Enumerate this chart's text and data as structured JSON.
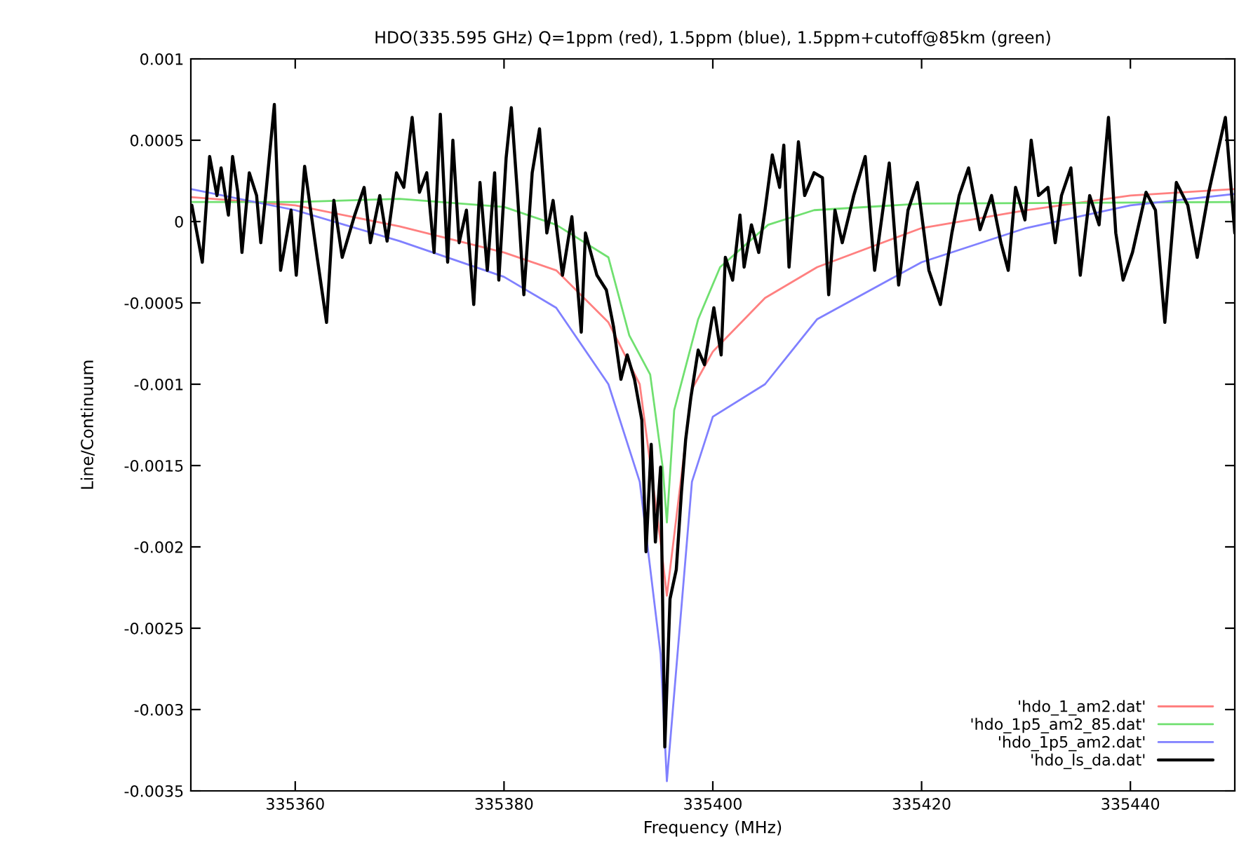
{
  "chart_data": {
    "type": "line",
    "title": "HDO(335.595 GHz) Q=1ppm (red), 1.5ppm (blue), 1.5ppm+cutoff@85km (green)",
    "xlabel": "Frequency (MHz)",
    "ylabel": "Line/Continuum",
    "xlim": [
      335350,
      335450
    ],
    "xticks": [
      335360,
      335380,
      335400,
      335420,
      335440
    ],
    "ylim": [
      -0.0035,
      0.001
    ],
    "yticks": [
      -0.0035,
      -0.003,
      -0.0025,
      -0.002,
      -0.0015,
      -0.001,
      -0.0005,
      0,
      0.0005,
      0.001
    ],
    "grid": false,
    "legend": "bottom right",
    "marker": "none",
    "line_style": "solid",
    "series": [
      {
        "name": "'hdo_1_am2.dat'",
        "color": "#ff8080",
        "x": [
          335350,
          335360,
          335370,
          335380,
          335385,
          335390,
          335393,
          335395,
          335395.6,
          335398,
          335400,
          335405,
          335410,
          335420,
          335430,
          335440,
          335450
        ],
        "values": [
          0.00015,
          0.0001,
          -3e-05,
          -0.00019,
          -0.0003,
          -0.00062,
          -0.001,
          -0.00197,
          -0.0023,
          -0.00103,
          -0.0008,
          -0.00047,
          -0.00028,
          -4e-05,
          7e-05,
          0.00016,
          0.0002
        ]
      },
      {
        "name": "'hdo_1p5_am2_85.dat'",
        "color": "#70e070",
        "x": [
          335350,
          335360,
          335370,
          335380,
          335385,
          335390,
          335392,
          335394,
          335395.2,
          335395.6,
          335396.3,
          335398.6,
          335400.7,
          335405.3,
          335409.7,
          335420,
          335450
        ],
        "values": [
          0.00012,
          0.00012,
          0.00014,
          9e-05,
          -2e-05,
          -0.00022,
          -0.0007,
          -0.00094,
          -0.00151,
          -0.00185,
          -0.00116,
          -0.0006,
          -0.00028,
          -2e-05,
          7e-05,
          0.00011,
          0.00012
        ]
      },
      {
        "name": "'hdo_1p5_am2.dat'",
        "color": "#8080ff",
        "x": [
          335350,
          335360,
          335370,
          335380,
          335385,
          335390,
          335393,
          335395,
          335395.6,
          335398,
          335400,
          335405,
          335410,
          335420,
          335430,
          335440,
          335450
        ],
        "values": [
          0.0002,
          7e-05,
          -0.00012,
          -0.00034,
          -0.00053,
          -0.001,
          -0.0016,
          -0.00266,
          -0.00344,
          -0.0016,
          -0.0012,
          -0.001,
          -0.0006,
          -0.00025,
          -4e-05,
          0.0001,
          0.00017
        ]
      },
      {
        "name": "'hdo_ls_da.dat'",
        "color": "#000000",
        "x": [
          335350.1,
          335351.1,
          335351.8,
          335352.5,
          335352.9,
          335353.6,
          335354.0,
          335354.5,
          335354.9,
          335355.6,
          335356.3,
          335356.7,
          335357.2,
          335358.0,
          335358.6,
          335359.6,
          335360.1,
          335360.9,
          335362.1,
          335363.0,
          335363.7,
          335364.5,
          335365.7,
          335366.6,
          335367.2,
          335368.1,
          335368.8,
          335369.7,
          335370.4,
          335371.2,
          335371.9,
          335372.6,
          335373.3,
          335373.9,
          335374.6,
          335375.1,
          335375.7,
          335376.4,
          335377.1,
          335377.7,
          335378.4,
          335379.1,
          335379.5,
          335380.2,
          335380.7,
          335381.3,
          335381.9,
          335382.7,
          335383.4,
          335384.1,
          335384.7,
          335385.6,
          335386.5,
          335387.4,
          335387.8,
          335388.9,
          335389.8,
          335390.5,
          335391.2,
          335391.8,
          335392.5,
          335393.2,
          335393.6,
          335394.1,
          335394.5,
          335395.0,
          335395.4,
          335395.9,
          335396.5,
          335397.0,
          335397.4,
          335397.9,
          335398.6,
          335399.2,
          335400.1,
          335400.8,
          335401.2,
          335401.9,
          335402.6,
          335403.0,
          335403.7,
          335404.4,
          335405.0,
          335405.7,
          335406.4,
          335406.8,
          335407.3,
          335408.2,
          335408.8,
          335409.7,
          335410.5,
          335411.1,
          335411.7,
          335412.4,
          335413.5,
          335414.6,
          335415.5,
          335416.9,
          335417.8,
          335418.7,
          335419.6,
          335420.7,
          335421.8,
          335422.9,
          335423.6,
          335424.5,
          335425.6,
          335426.7,
          335427.6,
          335428.3,
          335429.0,
          335429.9,
          335430.5,
          335431.2,
          335432.1,
          335432.8,
          335433.4,
          335434.3,
          335435.2,
          335436.1,
          335437.0,
          335437.9,
          335438.6,
          335439.3,
          335440.2,
          335441.5,
          335442.4,
          335443.3,
          335444.4,
          335445.5,
          335446.4,
          335447.5,
          335449.1,
          335450.0
        ],
        "values": [
          0.0001,
          -0.00025,
          0.0004,
          0.00016,
          0.00033,
          4e-05,
          0.0004,
          0.00018,
          -0.00019,
          0.0003,
          0.00016,
          -0.00013,
          0.00018,
          0.00072,
          -0.0003,
          7e-05,
          -0.00033,
          0.00034,
          -0.00022,
          -0.00062,
          0.00013,
          -0.00022,
          4e-05,
          0.00021,
          -0.00013,
          0.00016,
          -0.00012,
          0.0003,
          0.00021,
          0.00064,
          0.00018,
          0.0003,
          -0.00019,
          0.00066,
          -0.00025,
          0.0005,
          -0.00013,
          7e-05,
          -0.00051,
          0.00024,
          -0.0003,
          0.0003,
          -0.00036,
          0.00039,
          0.0007,
          0.00016,
          -0.00045,
          0.0003,
          0.00057,
          -7e-05,
          0.00013,
          -0.00033,
          3e-05,
          -0.00068,
          -7e-05,
          -0.00033,
          -0.00042,
          -0.00065,
          -0.00097,
          -0.00082,
          -0.00097,
          -0.00122,
          -0.00203,
          -0.00137,
          -0.00197,
          -0.00151,
          -0.00323,
          -0.00232,
          -0.00214,
          -0.00166,
          -0.00134,
          -0.00108,
          -0.00079,
          -0.00088,
          -0.00053,
          -0.00082,
          -0.00022,
          -0.00036,
          4e-05,
          -0.00028,
          -2e-05,
          -0.00019,
          7e-05,
          0.00041,
          0.00021,
          0.00047,
          -0.00028,
          0.00049,
          0.00016,
          0.0003,
          0.00027,
          -0.00045,
          7e-05,
          -0.00013,
          0.00016,
          0.0004,
          -0.0003,
          0.00036,
          -0.00039,
          7e-05,
          0.00024,
          -0.0003,
          -0.00051,
          -7e-05,
          0.00016,
          0.00033,
          -5e-05,
          0.00016,
          -0.00013,
          -0.0003,
          0.00021,
          1e-05,
          0.0005,
          0.00016,
          0.00021,
          -0.00013,
          0.00016,
          0.00033,
          -0.00033,
          0.00016,
          -2e-05,
          0.00064,
          -7e-05,
          -0.00036,
          -0.00019,
          0.00018,
          7e-05,
          -0.00062,
          0.00024,
          0.0001,
          -0.00022,
          0.00018,
          0.00064,
          -7e-05
        ]
      }
    ]
  }
}
